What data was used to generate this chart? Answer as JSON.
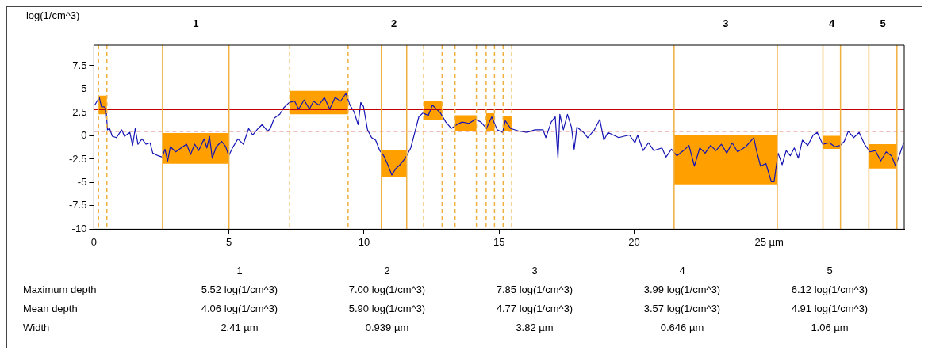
{
  "chart_data": {
    "type": "line",
    "ylabel": "log(1/cm^3)",
    "xlim": [
      0,
      30
    ],
    "ylim": [
      -10,
      9.7
    ],
    "xticks": [
      0,
      5,
      10,
      15,
      20,
      {
        "value": 25,
        "label": "25 µm"
      }
    ],
    "yticks": [
      -10,
      -7.5,
      -5,
      -2.5,
      0,
      2.5,
      5,
      7.5
    ],
    "series": [
      {
        "type": "area",
        "color": "#ffa000",
        "x": [
          0.17,
          0.17,
          0.48,
          0.48
        ],
        "values": [
          2.3,
          4.3,
          4.3,
          2.3
        ]
      },
      {
        "type": "area",
        "color": "#ffa000",
        "x": [
          2.54,
          2.54,
          5.0,
          5.0
        ],
        "values": [
          -3.0,
          0.3,
          0.3,
          -3.0
        ]
      },
      {
        "type": "area",
        "color": "#ffa000",
        "x": [
          7.25,
          7.25,
          9.41,
          9.41
        ],
        "values": [
          2.3,
          4.8,
          4.8,
          2.3
        ]
      },
      {
        "type": "area",
        "color": "#ffa000",
        "x": [
          10.64,
          10.64,
          11.58,
          11.58
        ],
        "values": [
          -4.4,
          -1.5,
          -1.5,
          -4.4
        ]
      },
      {
        "type": "area",
        "color": "#ffa000",
        "x": [
          12.21,
          12.21,
          12.89,
          12.89
        ],
        "values": [
          1.7,
          3.7,
          3.7,
          1.7
        ]
      },
      {
        "type": "area",
        "color": "#ffa000",
        "x": [
          13.37,
          13.37,
          14.16,
          14.16
        ],
        "values": [
          0.5,
          2.2,
          2.2,
          0.5
        ]
      },
      {
        "type": "area",
        "color": "#ffa000",
        "x": [
          14.52,
          14.52,
          14.83,
          14.83
        ],
        "values": [
          0.5,
          2.4,
          2.4,
          0.5
        ]
      },
      {
        "type": "area",
        "color": "#ffa000",
        "x": [
          15.15,
          15.15,
          15.47,
          15.47
        ],
        "values": [
          0.5,
          2.1,
          2.1,
          0.5
        ]
      },
      {
        "type": "area",
        "color": "#ffa000",
        "x": [
          21.48,
          21.48,
          25.3,
          25.3
        ],
        "values": [
          -5.2,
          0.1,
          0.1,
          -5.2
        ]
      },
      {
        "type": "area",
        "color": "#ffa000",
        "x": [
          26.99,
          26.99,
          27.64,
          27.64
        ],
        "values": [
          -1.4,
          0,
          0,
          -1.4
        ]
      },
      {
        "type": "area",
        "color": "#ffa000",
        "x": [
          28.69,
          28.69,
          29.73,
          29.73
        ],
        "values": [
          -3.5,
          -0.9,
          -0.9,
          -3.5
        ]
      },
      {
        "color": "#1414b4",
        "x": [
          0.03,
          0.2,
          0.28,
          0.38,
          0.45,
          0.5,
          0.58,
          0.68,
          0.83,
          1.03,
          1.13,
          1.33,
          1.43,
          1.53,
          1.63,
          1.78,
          1.93,
          2.08,
          2.18,
          2.38,
          2.53,
          2.63,
          2.73,
          2.83,
          3.03,
          3.23,
          3.43,
          3.58,
          3.73,
          3.88,
          4.08,
          4.18,
          4.28,
          4.38,
          4.53,
          4.73,
          4.88,
          4.99,
          5.13,
          5.33,
          5.53,
          5.73,
          5.88,
          6.08,
          6.23,
          6.43,
          6.53,
          6.68,
          6.88,
          7.03,
          7.23,
          7.43,
          7.58,
          7.78,
          7.98,
          8.13,
          8.33,
          8.53,
          8.73,
          8.93,
          9.13,
          9.33,
          9.48,
          9.63,
          9.78,
          9.88,
          9.98,
          10.13,
          10.28,
          10.43,
          10.58,
          10.73,
          10.88,
          11.03,
          11.18,
          11.33,
          11.53,
          11.73,
          11.88,
          12.03,
          12.18,
          12.38,
          12.53,
          12.68,
          12.83,
          13.03,
          13.23,
          13.43,
          13.63,
          13.88,
          14.13,
          14.33,
          14.53,
          14.73,
          14.93,
          15.13,
          15.23,
          15.43,
          15.73,
          16.03,
          16.33,
          16.63,
          16.73,
          16.93,
          17.08,
          17.18,
          17.25,
          17.38,
          17.53,
          17.68,
          17.78,
          17.88,
          18.13,
          18.28,
          18.53,
          18.73,
          18.88,
          19.03,
          19.23,
          19.43,
          19.63,
          19.83,
          20.03,
          20.13,
          20.33,
          20.53,
          20.73,
          21.03,
          21.18,
          21.38,
          21.58,
          21.83,
          22.03,
          22.23,
          22.43,
          22.63,
          22.83,
          23.03,
          23.23,
          23.43,
          23.63,
          23.83,
          24.13,
          24.43,
          24.53,
          24.68,
          24.88,
          25.08,
          25.18,
          25.33,
          25.48,
          25.63,
          25.78,
          25.93,
          26.08,
          26.23,
          26.43,
          26.63,
          26.78,
          26.98,
          27.23,
          27.43,
          27.63,
          27.78,
          27.93,
          28.13,
          28.33,
          28.53,
          28.73,
          28.93,
          29.13,
          29.33,
          29.53,
          29.68,
          29.98
        ],
        "values": [
          3.28,
          4.1,
          3.1,
          3.1,
          2.9,
          0.64,
          0.78,
          -0.05,
          -0.2,
          0.64,
          -0.05,
          0.36,
          -1.03,
          0.78,
          -0.9,
          -0.33,
          -0.9,
          -0.75,
          -1.86,
          -2.14,
          -2.28,
          -1.44,
          -2.7,
          -1.17,
          -1.72,
          -1.3,
          -0.9,
          -2.0,
          -0.9,
          -1.58,
          -0.33,
          -1.3,
          -0.05,
          -2.4,
          -1.17,
          -0.6,
          -1.17,
          -2.14,
          -1.3,
          -0.33,
          -0.9,
          0.78,
          0.08,
          0.78,
          1.2,
          0.5,
          0.78,
          1.9,
          2.3,
          3.0,
          3.56,
          3.7,
          2.86,
          3.83,
          2.86,
          3.7,
          3.28,
          4.1,
          2.86,
          4.1,
          3.7,
          4.53,
          3.28,
          2.58,
          1.19,
          3.56,
          3.14,
          0.64,
          -0.2,
          -0.47,
          -1.58,
          -2.14,
          -3.1,
          -4.2,
          -3.5,
          -3.1,
          -2.4,
          -1.3,
          0.36,
          2.03,
          2.44,
          2.17,
          3.28,
          2.86,
          2.44,
          1.47,
          0.78,
          1.19,
          1.47,
          1.33,
          1.75,
          1.47,
          0.78,
          2.03,
          0.64,
          0.36,
          1.61,
          0.78,
          0.5,
          0.36,
          0.64,
          0.64,
          -0.2,
          1.47,
          2.03,
          -2.4,
          2.3,
          0.64,
          2.3,
          0.92,
          -1.44,
          0.92,
          0.36,
          -0.2,
          0.64,
          1.75,
          -0.47,
          0.36,
          0.08,
          -0.2,
          -0.05,
          0.08,
          -0.75,
          0.08,
          -1.58,
          -0.75,
          -1.58,
          -1.3,
          -2.28,
          -1.44,
          -2.14,
          -1.58,
          -1.03,
          -3.25,
          -1.3,
          -1.86,
          -1.03,
          -1.58,
          -0.9,
          -1.86,
          -0.75,
          -1.72,
          -1.17,
          -0.2,
          -1.58,
          -3.25,
          -2.97,
          -4.92,
          -4.92,
          -1.86,
          -3.1,
          -1.58,
          -2.14,
          -1.3,
          -2.4,
          -0.47,
          -1.03,
          0.08,
          0.36,
          -0.9,
          -0.75,
          -1.17,
          -1.03,
          -0.6,
          0.5,
          -0.2,
          0.36,
          -0.9,
          -1.72,
          -1.58,
          -2.7,
          -1.72,
          -2.14,
          -3.25,
          -0.75
        ]
      }
    ],
    "ref_lines": [
      {
        "axis": "y",
        "value": 2.8,
        "color": "#c00000",
        "line_style": "solid"
      },
      {
        "axis": "y",
        "value": 0.5,
        "color": "#c00000",
        "line_style": "dashed"
      },
      {
        "axis": "x",
        "value": 0.17,
        "color": "#f0b040",
        "line_style": "dashed"
      },
      {
        "axis": "x",
        "value": 0.48,
        "color": "#f0b040",
        "line_style": "dashed"
      },
      {
        "axis": "x",
        "value": 2.54,
        "color": "#f0b040",
        "line_style": "solid"
      },
      {
        "axis": "x",
        "value": 5.0,
        "color": "#f0b040",
        "line_style": "solid"
      },
      {
        "axis": "x",
        "value": 7.25,
        "color": "#f0b040",
        "line_style": "dashed"
      },
      {
        "axis": "x",
        "value": 9.41,
        "color": "#f0b040",
        "line_style": "dashed"
      },
      {
        "axis": "x",
        "value": 10.64,
        "color": "#f0b040",
        "line_style": "solid"
      },
      {
        "axis": "x",
        "value": 11.58,
        "color": "#f0b040",
        "line_style": "solid"
      },
      {
        "axis": "x",
        "value": 12.21,
        "color": "#f0b040",
        "line_style": "dashed"
      },
      {
        "axis": "x",
        "value": 12.89,
        "color": "#f0b040",
        "line_style": "dashed"
      },
      {
        "axis": "x",
        "value": 13.37,
        "color": "#f0b040",
        "line_style": "dashed"
      },
      {
        "axis": "x",
        "value": 14.16,
        "color": "#f0b040",
        "line_style": "dashed"
      },
      {
        "axis": "x",
        "value": 14.52,
        "color": "#f0b040",
        "line_style": "dashed"
      },
      {
        "axis": "x",
        "value": 14.83,
        "color": "#f0b040",
        "line_style": "dashed"
      },
      {
        "axis": "x",
        "value": 15.15,
        "color": "#f0b040",
        "line_style": "dashed"
      },
      {
        "axis": "x",
        "value": 15.47,
        "color": "#f0b040",
        "line_style": "dashed"
      },
      {
        "axis": "x",
        "value": 21.48,
        "color": "#f0b040",
        "line_style": "solid"
      },
      {
        "axis": "x",
        "value": 25.3,
        "color": "#f0b040",
        "line_style": "solid"
      },
      {
        "axis": "x",
        "value": 26.99,
        "color": "#f0b040",
        "line_style": "solid"
      },
      {
        "axis": "x",
        "value": 27.64,
        "color": "#f0b040",
        "line_style": "solid"
      },
      {
        "axis": "x",
        "value": 28.69,
        "color": "#f0b040",
        "line_style": "solid"
      },
      {
        "axis": "x",
        "value": 29.73,
        "color": "#f0b040",
        "line_style": "solid"
      }
    ],
    "annotations": [
      "1",
      "2",
      "3",
      "4",
      "5",
      "1",
      "2",
      "3",
      "4",
      "5",
      "Maximum depth",
      "5.52 log(1/cm^3)",
      "7.00 log(1/cm^3)",
      "7.85 log(1/cm^3)",
      "3.99 log(1/cm^3)",
      "6.12 log(1/cm^3)",
      "Mean depth",
      "4.06 log(1/cm^3)",
      "5.90 log(1/cm^3)",
      "4.77 log(1/cm^3)",
      "3.57 log(1/cm^3)",
      "4.91 log(1/cm^3)",
      "Width",
      "2.41 µm",
      "0.939 µm",
      "3.82 µm",
      "0.646 µm",
      "1.06 µm"
    ],
    "marker": "none",
    "legend": false
  }
}
